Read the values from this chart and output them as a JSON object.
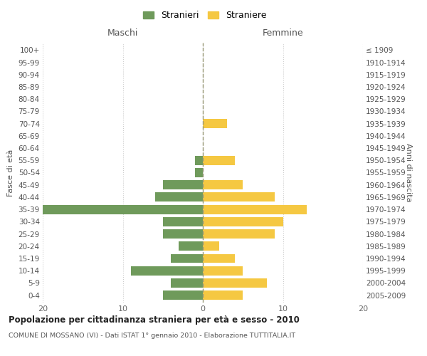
{
  "age_groups": [
    "0-4",
    "5-9",
    "10-14",
    "15-19",
    "20-24",
    "25-29",
    "30-34",
    "35-39",
    "40-44",
    "45-49",
    "50-54",
    "55-59",
    "60-64",
    "65-69",
    "70-74",
    "75-79",
    "80-84",
    "85-89",
    "90-94",
    "95-99",
    "100+"
  ],
  "birth_years": [
    "2005-2009",
    "2000-2004",
    "1995-1999",
    "1990-1994",
    "1985-1989",
    "1980-1984",
    "1975-1979",
    "1970-1974",
    "1965-1969",
    "1960-1964",
    "1955-1959",
    "1950-1954",
    "1945-1949",
    "1940-1944",
    "1935-1939",
    "1930-1934",
    "1925-1929",
    "1920-1924",
    "1915-1919",
    "1910-1914",
    "≤ 1909"
  ],
  "maschi": [
    5,
    4,
    9,
    4,
    3,
    5,
    5,
    20,
    6,
    5,
    1,
    1,
    0,
    0,
    0,
    0,
    0,
    0,
    0,
    0,
    0
  ],
  "femmine": [
    5,
    8,
    5,
    4,
    2,
    9,
    10,
    13,
    9,
    5,
    0,
    4,
    0,
    0,
    3,
    0,
    0,
    0,
    0,
    0,
    0
  ],
  "maschi_color": "#6f9a5b",
  "femmine_color": "#f5c842",
  "background_color": "#ffffff",
  "grid_color": "#cccccc",
  "title": "Popolazione per cittadinanza straniera per età e sesso - 2010",
  "subtitle": "COMUNE DI MOSSANO (VI) - Dati ISTAT 1° gennaio 2010 - Elaborazione TUTTITALIA.IT",
  "xlabel_left": "Maschi",
  "xlabel_right": "Femmine",
  "ylabel_left": "Fasce di età",
  "ylabel_right": "Anni di nascita",
  "legend_maschi": "Stranieri",
  "legend_femmine": "Straniere",
  "xlim": 20,
  "xticks": [
    -20,
    -10,
    0,
    10,
    20
  ],
  "xticklabels": [
    "20",
    "10",
    "0",
    "10",
    "20"
  ]
}
